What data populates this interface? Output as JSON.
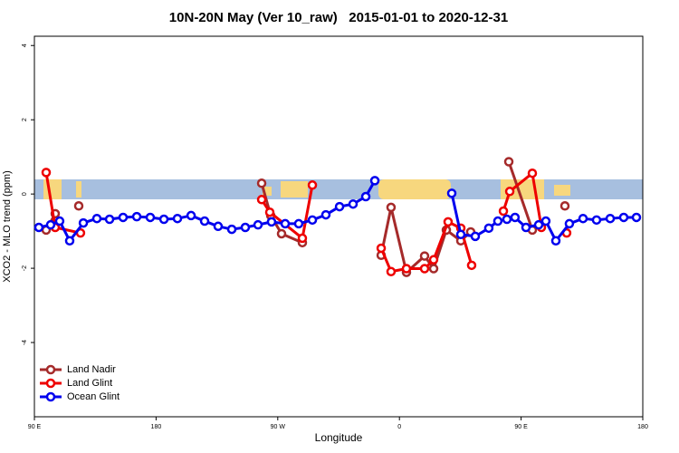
{
  "chart_data": {
    "type": "line",
    "title": "10N-20N May (Ver 10_raw)   2015-01-01 to 2020-12-31",
    "x_label": "Longitude",
    "y_label": "XCO2 - MLO trend (ppm)",
    "xlim": [
      90,
      540
    ],
    "ylim": [
      -6,
      4.25
    ],
    "xticks": [
      {
        "value": 90,
        "label": "90 E"
      },
      {
        "value": 180,
        "label": "180"
      },
      {
        "value": 270,
        "label": "90 W"
      },
      {
        "value": 360,
        "label": "0"
      },
      {
        "value": 450,
        "label": "90 E"
      },
      {
        "value": 540,
        "label": "180"
      }
    ],
    "yticks": [
      -4,
      -2,
      0,
      2,
      4
    ],
    "legend": "bottom-left",
    "series": [
      {
        "name": "Land Nadir",
        "color": "#a52a2a",
        "x": [
          98.7,
          105.4,
          null,
          122.8,
          null,
          258.1,
          264.8,
          272.8,
          288.2,
          null,
          346.5,
          353.8,
          365.2,
          378.6,
          385.3,
          394.7,
          405.4,
          412.7,
          null,
          440.9,
          458.3,
          null,
          482.4
        ],
        "values": [
          -0.97,
          -0.53,
          null,
          -0.32,
          null,
          0.29,
          -0.58,
          -1.07,
          -1.31,
          null,
          -1.65,
          -0.36,
          -2.11,
          -1.67,
          -2.01,
          -0.97,
          -1.26,
          -1.02,
          null,
          0.87,
          -0.97,
          null,
          -0.32
        ]
      },
      {
        "name": "Land Glint",
        "color": "#ee0000",
        "x": [
          98.7,
          105.4,
          124.1,
          null,
          258.1,
          264.1,
          288.2,
          295.6,
          null,
          346.5,
          353.8,
          365.2,
          378.6,
          385.3,
          396.0,
          405.4,
          413.4,
          null,
          436.9,
          441.6,
          458.3,
          465.0,
          null,
          483.7
        ],
        "values": [
          0.58,
          -0.9,
          -1.05,
          null,
          -0.15,
          -0.49,
          -1.19,
          0.24,
          null,
          -1.46,
          -2.09,
          -2.01,
          -2.01,
          -1.77,
          -0.75,
          -0.92,
          -1.92,
          null,
          -0.46,
          0.07,
          0.56,
          -0.9,
          null,
          -1.05
        ]
      },
      {
        "name": "Ocean Glint",
        "color": "#0000ee",
        "x": [
          93.3,
          102,
          108.7,
          116.1,
          126.2,
          136.2,
          145.6,
          155.6,
          165.7,
          175.7,
          185.8,
          195.8,
          205.9,
          215.9,
          225.9,
          236,
          246,
          255.4,
          265.4,
          275.5,
          285.5,
          295.6,
          305.6,
          315.7,
          325.7,
          335.1,
          341.8,
          null,
          398.7,
          405.4,
          416.1,
          426.1,
          432.8,
          439.5,
          445.5,
          453.6,
          463,
          468.3,
          475.7,
          485.7,
          495.8,
          505.8,
          515.9,
          525.9,
          535.3
        ],
        "values": [
          -0.9,
          -0.83,
          -0.73,
          -1.26,
          -0.78,
          -0.66,
          -0.68,
          -0.63,
          -0.61,
          -0.63,
          -0.68,
          -0.66,
          -0.58,
          -0.73,
          -0.87,
          -0.95,
          -0.9,
          -0.83,
          -0.75,
          -0.8,
          -0.8,
          -0.7,
          -0.56,
          -0.34,
          -0.27,
          -0.07,
          0.36,
          null,
          0.02,
          -1.09,
          -1.14,
          -0.92,
          -0.73,
          -0.68,
          -0.63,
          -0.9,
          -0.83,
          -0.73,
          -1.26,
          -0.8,
          -0.66,
          -0.7,
          -0.66,
          -0.63,
          -0.63
        ]
      }
    ]
  }
}
